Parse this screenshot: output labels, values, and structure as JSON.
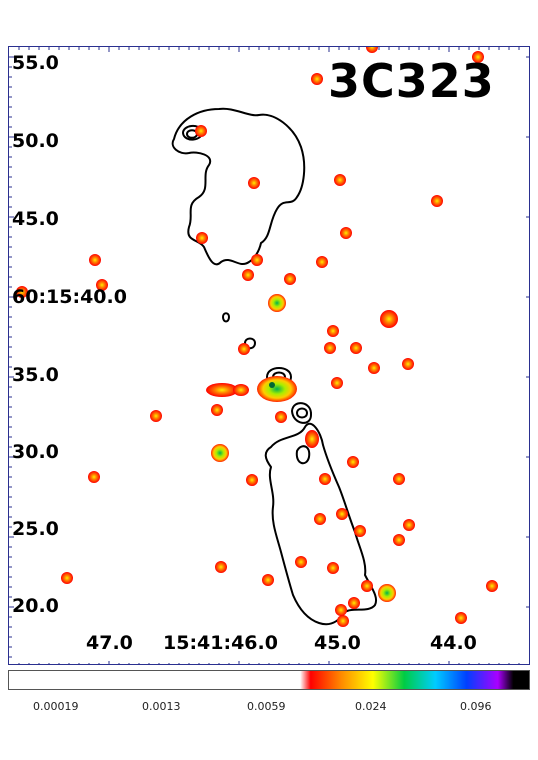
{
  "title": "3C323",
  "dec_labels": [
    "55.0",
    "50.0",
    "45.0",
    "60:15:40.0",
    "35.0",
    "30.0",
    "25.0",
    "20.0"
  ],
  "ra_labels": [
    "47.0",
    "15:41:46.0",
    "45.0",
    "44.0"
  ],
  "colorbar": {
    "labels": [
      "0.00019",
      "0.0013",
      "0.0059",
      "0.024",
      "0.096"
    ],
    "colors": [
      "#ffffff",
      "#ff0000",
      "#ff8c00",
      "#ffff00",
      "#00cc44",
      "#00ccff",
      "#0040ff",
      "#aa00ff",
      "#000000"
    ]
  }
}
